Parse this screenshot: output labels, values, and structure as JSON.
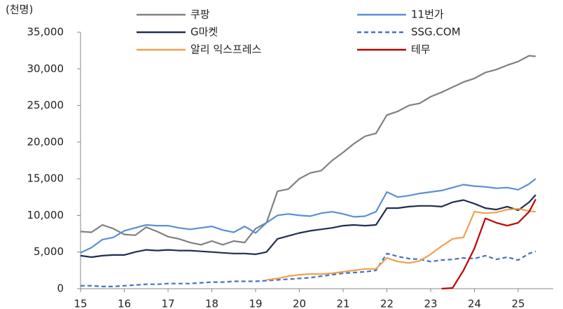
{
  "chart_data": {
    "type": "line",
    "y_label": "(천명)",
    "x": [
      15,
      15.25,
      15.5,
      15.75,
      16,
      16.25,
      16.5,
      16.75,
      17,
      17.25,
      17.5,
      17.75,
      18,
      18.25,
      18.5,
      18.75,
      19,
      19.25,
      19.5,
      19.75,
      20,
      20.25,
      20.5,
      20.75,
      21,
      21.25,
      21.5,
      21.75,
      22,
      22.25,
      22.5,
      22.75,
      23,
      23.25,
      23.5,
      23.75,
      24,
      24.25,
      24.5,
      24.75,
      25,
      25.25,
      25.4
    ],
    "series": [
      {
        "name": "쿠팡",
        "color": "#808080",
        "values": [
          7800,
          7700,
          8700,
          8200,
          7400,
          7300,
          8400,
          7800,
          7100,
          6800,
          6300,
          6000,
          6500,
          6000,
          6500,
          6300,
          8200,
          9000,
          13300,
          13600,
          15000,
          15800,
          16100,
          17500,
          18600,
          19800,
          20800,
          21200,
          23700,
          24200,
          25000,
          25300,
          26200,
          26800,
          27500,
          28200,
          28700,
          29500,
          29900,
          30500,
          31000,
          31800,
          31700
        ]
      },
      {
        "name": "11번가",
        "color": "#5b8fd6",
        "values": [
          4900,
          5600,
          6700,
          7000,
          7900,
          8300,
          8700,
          8600,
          8600,
          8300,
          8100,
          8300,
          8500,
          8000,
          7700,
          8500,
          7600,
          9000,
          10000,
          10200,
          10000,
          9900,
          10300,
          10500,
          10200,
          9800,
          9900,
          10500,
          13200,
          12500,
          12700,
          13000,
          13200,
          13400,
          13800,
          14200,
          14000,
          13900,
          13700,
          13800,
          13500,
          14300,
          15000
        ]
      },
      {
        "name": "G마켓",
        "color": "#1f2f4f",
        "values": [
          4500,
          4300,
          4500,
          4600,
          4600,
          5000,
          5300,
          5200,
          5300,
          5200,
          5200,
          5100,
          5000,
          4900,
          4800,
          4800,
          4700,
          5000,
          6800,
          7200,
          7600,
          7900,
          8100,
          8300,
          8600,
          8700,
          8600,
          8700,
          11000,
          11000,
          11200,
          11300,
          11300,
          11200,
          11800,
          12100,
          11600,
          11000,
          10800,
          11200,
          10700,
          11800,
          12800
        ]
      },
      {
        "name": "SSG.COM",
        "color": "#4472c4",
        "dashed": true,
        "values": [
          400,
          400,
          300,
          300,
          400,
          500,
          600,
          600,
          700,
          700,
          700,
          800,
          900,
          900,
          1000,
          1000,
          1000,
          1100,
          1200,
          1300,
          1400,
          1500,
          1700,
          1900,
          2100,
          2200,
          2300,
          2500,
          4800,
          4400,
          4100,
          4000,
          3700,
          3900,
          4000,
          4200,
          4100,
          4500,
          4000,
          4300,
          3900,
          4800,
          5100
        ]
      },
      {
        "name": "알리 익스프레스",
        "color": "#f0a050",
        "values": [
          null,
          null,
          null,
          null,
          null,
          null,
          null,
          null,
          null,
          null,
          null,
          null,
          null,
          null,
          null,
          null,
          null,
          1200,
          1400,
          1700,
          1900,
          2000,
          2000,
          2100,
          2300,
          2500,
          2700,
          2700,
          4200,
          3700,
          3500,
          3800,
          4700,
          5800,
          6800,
          7000,
          10500,
          10300,
          10400,
          10800,
          10900,
          10600,
          10500
        ]
      },
      {
        "name": "테무",
        "color": "#c00000",
        "values": [
          null,
          null,
          null,
          null,
          null,
          null,
          null,
          null,
          null,
          null,
          null,
          null,
          null,
          null,
          null,
          null,
          null,
          null,
          null,
          null,
          null,
          null,
          null,
          null,
          null,
          null,
          null,
          null,
          null,
          null,
          null,
          null,
          null,
          0,
          100,
          2500,
          5500,
          9600,
          9000,
          8600,
          9000,
          10500,
          12200
        ]
      }
    ],
    "xlim": [
      15,
      25.8
    ],
    "xticks": [
      15,
      16,
      17,
      18,
      19,
      20,
      21,
      22,
      23,
      24,
      25
    ],
    "ylim": [
      0,
      35000
    ],
    "yticks": [
      0,
      {
        "value": 5000,
        "label": "5,000"
      },
      {
        "value": 10000,
        "label": "10,000"
      },
      {
        "value": 15000,
        "label": "15,000"
      },
      {
        "value": 20000,
        "label": "20,000"
      },
      {
        "value": 25000,
        "label": "25,000"
      },
      {
        "value": 30000,
        "label": "30,000"
      },
      {
        "value": 35000,
        "label": "35,000"
      }
    ],
    "grid": false
  }
}
